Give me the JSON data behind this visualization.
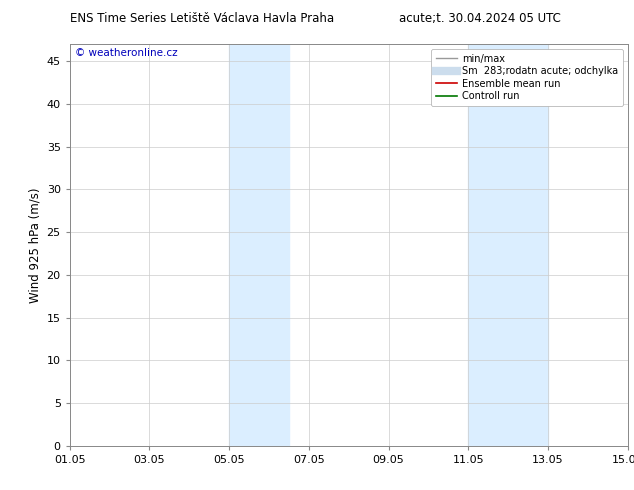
{
  "title_left": "ENS Time Series Letiště Václava Havla Praha",
  "title_right": "acute;t. 30.04.2024 05 UTC",
  "ylabel": "Wind 925 hPa (m/s)",
  "watermark": "© weatheronline.cz",
  "legend_entries": [
    {
      "label": "min/max",
      "color": "#999999",
      "lw": 1.0,
      "style": "-"
    },
    {
      "label": "Sm  283;rodatn acute; odchylka",
      "color": "#ccdded",
      "lw": 6,
      "style": "-"
    },
    {
      "label": "Ensemble mean run",
      "color": "#cc0000",
      "lw": 1.2,
      "style": "-"
    },
    {
      "label": "Controll run",
      "color": "#007700",
      "lw": 1.2,
      "style": "-"
    }
  ],
  "xtick_labels": [
    "01.05",
    "03.05",
    "05.05",
    "07.05",
    "09.05",
    "11.05",
    "13.05",
    "15.05"
  ],
  "xtick_positions": [
    0,
    2,
    4,
    6,
    8,
    10,
    12,
    14
  ],
  "ylim": [
    0,
    47
  ],
  "ytick_positions": [
    0,
    5,
    10,
    15,
    20,
    25,
    30,
    35,
    40,
    45
  ],
  "shade_regions": [
    {
      "x_start": 4.0,
      "x_end": 5.5,
      "color": "#dbeeff"
    },
    {
      "x_start": 10.0,
      "x_end": 12.0,
      "color": "#dbeeff"
    }
  ],
  "bg_color": "#ffffff",
  "grid_color": "#cccccc",
  "watermark_color": "#0000bb",
  "xlim": [
    0,
    14
  ]
}
